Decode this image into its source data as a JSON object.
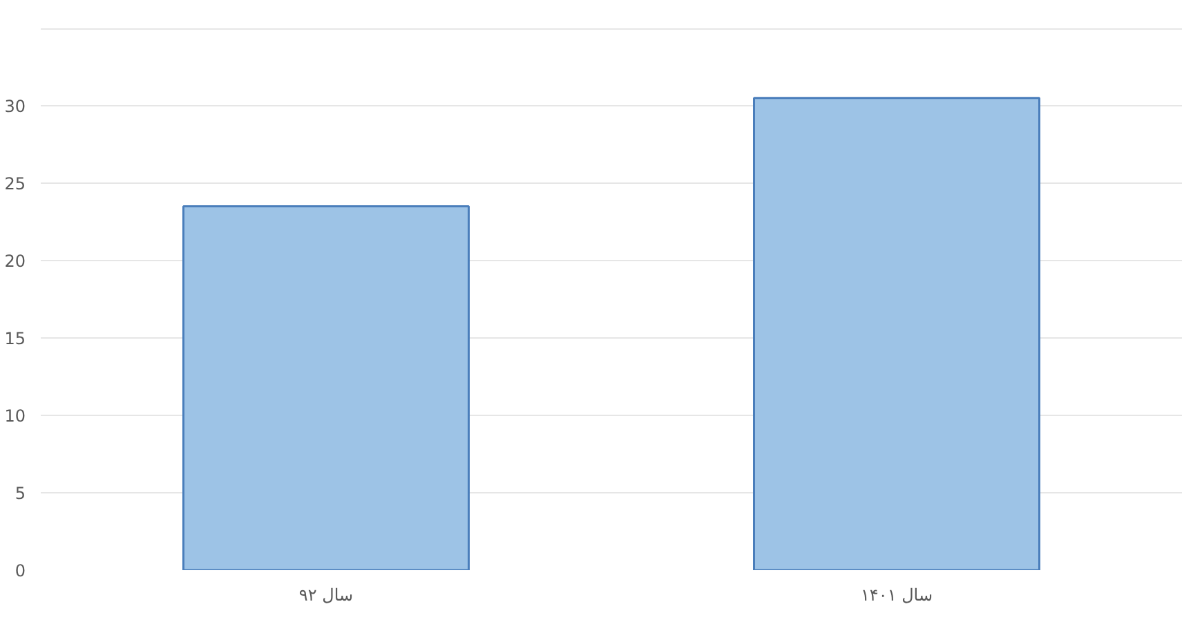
{
  "chart_data": {
    "type": "bar",
    "categories": [
      "سال ۹۲",
      "سال ۱۴۰۱"
    ],
    "values": [
      23.5,
      30.5
    ],
    "color": "#9dc3e6",
    "ylim": [
      0,
      35
    ],
    "yticks": [
      0,
      5,
      10,
      15,
      20,
      25,
      30,
      {
        "value": 35,
        "label": null
      }
    ],
    "grid": "y"
  }
}
